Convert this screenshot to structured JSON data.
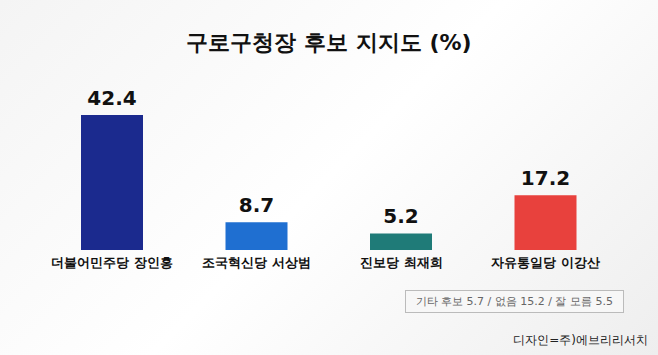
{
  "chart_data": {
    "type": "bar",
    "title": "구로구청장 후보 지지도 (%)",
    "categories": [
      "더불어민주당 장인홍",
      "조국혁신당 서상범",
      "진보당 최재희",
      "자유통일당 이강산"
    ],
    "values": [
      42.4,
      8.7,
      5.2,
      17.2
    ],
    "colors": [
      "#1b2a8e",
      "#1f6fd1",
      "#1f7b78",
      "#e8413d"
    ],
    "data_labels": true,
    "tick_labels": "x",
    "grid": false,
    "annotations": [
      "기타 후보 5.7 / 없음 15.2 / 잘 모름 5.5",
      "디자인=주)에브리리서치"
    ]
  }
}
